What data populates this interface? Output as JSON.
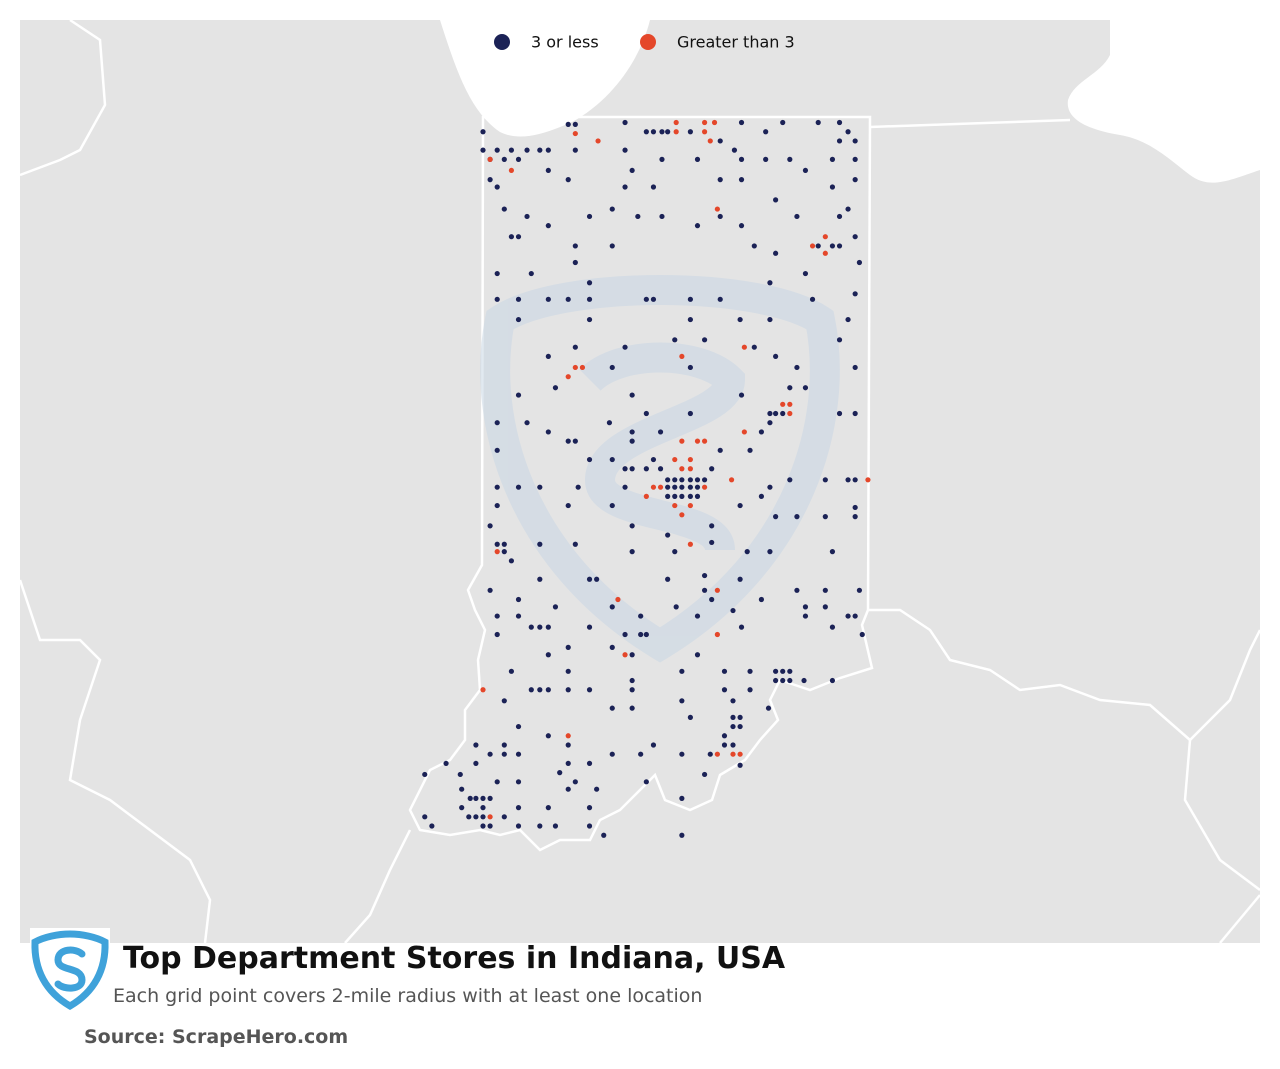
{
  "title": "Top Department Stores in Indiana, USA",
  "subtitle": "Each grid point covers 2-mile radius with at least one location",
  "source": "Source: ScrapeHero.com",
  "legend": [
    {
      "name": "3 or less",
      "color": "#1b2256"
    },
    {
      "name": "Greater than 3",
      "color": "#e4472a"
    }
  ],
  "series": [
    {
      "lon": [
        -87.53,
        -86.93,
        -86.88,
        -86.53,
        -86.38,
        -86.33,
        -86.27,
        -86.23,
        -86.07,
        -85.86,
        -85.71,
        -85.54,
        -85.42,
        -85.17,
        -85.02,
        -84.96,
        -84.91,
        -85.02,
        -87.53,
        -87.43,
        -87.33,
        -87.22,
        -87.13,
        -87.07,
        -87.48,
        -87.38,
        -87.28,
        -87.48,
        -87.43,
        -87.07,
        -86.93,
        -86.88,
        -86.53,
        -86.48,
        -86.27,
        -86.02,
        -85.76,
        -85.71,
        -85.54,
        -85.37,
        -85.07,
        -84.91,
        -85.26,
        -85.07,
        -84.91,
        -85.86,
        -85.71,
        -86.33,
        -86.53,
        -87.38,
        -87.22,
        -87.07,
        -87.33,
        -87.28,
        -86.78,
        -86.62,
        -86.44,
        -86.27,
        -86.02,
        -85.86,
        -85.71,
        -85.47,
        -85.32,
        -85.02,
        -84.96,
        -84.91,
        -85.07,
        -85.02,
        -85.17,
        -86.88,
        -86.62,
        -85.62,
        -85.47,
        -87.43,
        -87.19,
        -86.88,
        -85.26,
        -84.88,
        -86.78,
        -85.51,
        -87.43,
        -87.28,
        -87.07,
        -86.93,
        -86.78,
        -86.38,
        -86.33,
        -86.07,
        -85.86,
        -85.21,
        -84.91,
        -87.28,
        -86.78,
        -86.07,
        -85.72,
        -85.51,
        -84.96,
        -86.88,
        -87.07,
        -86.53,
        -86.18,
        -85.97,
        -85.62,
        -85.47,
        -85.02,
        -85.32,
        -84.91,
        -86.07,
        -86.62,
        -87.02,
        -87.28,
        -86.48,
        -85.71,
        -85.37,
        -85.26,
        -87.43,
        -87.22,
        -86.64,
        -86.38,
        -86.07,
        -85.51,
        -85.47,
        -85.42,
        -84.91,
        -85.02,
        -87.07,
        -86.93,
        -86.88,
        -86.48,
        -86.48,
        -86.28,
        -85.86,
        -85.65,
        -85.57,
        -85.51,
        -87.43,
        -86.78,
        -86.62,
        -86.53,
        -86.48,
        -86.38,
        -86.33,
        -86.28,
        -86.23,
        -86.18,
        -86.13,
        -86.07,
        -86.02,
        -85.97,
        -85.92,
        -86.18,
        -86.13,
        -86.07,
        -86.02,
        -86.23,
        -86.18,
        -86.13,
        -86.07,
        -86.02,
        -86.23,
        -86.53,
        -87.43,
        -87.28,
        -87.13,
        -86.86,
        -85.51,
        -85.37,
        -85.12,
        -84.96,
        -84.91,
        -87.43,
        -86.93,
        -86.62,
        -85.72,
        -85.57,
        -85.47,
        -85.32,
        -85.12,
        -84.91,
        -84.91,
        -87.48,
        -86.48,
        -86.23,
        -85.92,
        -87.43,
        -87.38,
        -87.38,
        -87.33,
        -87.13,
        -86.88,
        -86.48,
        -86.18,
        -85.92,
        -85.67,
        -85.51,
        -85.07,
        -87.48,
        -87.28,
        -87.13,
        -86.78,
        -86.73,
        -86.23,
        -85.97,
        -85.97,
        -85.92,
        -85.72,
        -85.57,
        -85.32,
        -85.12,
        -84.88,
        -87.43,
        -87.28,
        -87.02,
        -86.62,
        -86.42,
        -86.17,
        -86.02,
        -85.77,
        -85.26,
        -85.26,
        -85.12,
        -84.96,
        -84.91,
        -87.43,
        -87.19,
        -87.13,
        -87.07,
        -86.78,
        -86.53,
        -86.42,
        -86.38,
        -85.71,
        -85.07,
        -84.86,
        -87.07,
        -86.93,
        -86.62,
        -86.48,
        -86.02,
        -85.47,
        -85.42,
        -85.37,
        -85.47,
        -85.42,
        -85.37,
        -87.33,
        -86.93,
        -86.48,
        -86.13,
        -85.83,
        -85.65,
        -85.07,
        -85.27,
        -87.19,
        -87.13,
        -87.07,
        -86.93,
        -86.78,
        -86.48,
        -85.83,
        -85.65,
        -87.38,
        -86.13,
        -85.77,
        -86.62,
        -86.48,
        -85.77,
        -85.72,
        -85.52,
        -86.07,
        -87.28,
        -85.77,
        -85.72,
        -85.83,
        -86.93,
        -87.07,
        -87.28,
        -87.58,
        -87.48,
        -87.38,
        -86.42,
        -86.33,
        -85.77,
        -85.83,
        -87.38,
        -87.69,
        -87.58,
        -86.93,
        -86.78,
        -86.62,
        -86.13,
        -85.93,
        -85.72,
        -87.79,
        -87.43,
        -87.28,
        -86.88,
        -86.99,
        -86.38,
        -85.97,
        -87.94,
        -86.93,
        -86.73,
        -86.13,
        -87.68,
        -87.58,
        -87.53,
        -87.48,
        -87.62,
        -87.53,
        -87.68,
        -87.63,
        -87.58,
        -87.53,
        -87.38,
        -87.28,
        -87.07,
        -86.78,
        -87.94,
        -87.89,
        -87.53,
        -87.48,
        -87.28,
        -87.13,
        -86.78,
        -87.02,
        -86.68,
        -86.13
      ],
      "lat": [
        41.68,
        41.72,
        41.72,
        41.73,
        41.68,
        41.68,
        41.68,
        41.68,
        41.68,
        41.63,
        41.73,
        41.68,
        41.73,
        41.73,
        41.73,
        41.68,
        41.63,
        41.63,
        41.58,
        41.58,
        41.58,
        41.58,
        41.58,
        41.58,
        41.53,
        41.53,
        41.53,
        41.42,
        41.38,
        41.47,
        41.42,
        41.58,
        41.58,
        41.47,
        41.53,
        41.53,
        41.58,
        41.53,
        41.53,
        41.53,
        41.53,
        41.53,
        41.47,
        41.38,
        41.42,
        41.42,
        41.42,
        41.38,
        41.38,
        41.26,
        41.22,
        41.17,
        41.11,
        41.11,
        41.22,
        41.26,
        41.22,
        41.22,
        41.17,
        41.22,
        41.17,
        41.31,
        41.22,
        41.22,
        41.26,
        41.11,
        41.06,
        41.06,
        41.06,
        41.06,
        41.06,
        41.06,
        41.02,
        40.91,
        40.91,
        40.97,
        40.91,
        40.97,
        40.86,
        40.86,
        40.77,
        40.77,
        40.77,
        40.77,
        40.77,
        40.77,
        40.77,
        40.77,
        40.77,
        40.77,
        40.8,
        40.66,
        40.66,
        40.66,
        40.66,
        40.66,
        40.66,
        40.51,
        40.46,
        40.51,
        40.55,
        40.55,
        40.51,
        40.46,
        40.55,
        40.4,
        40.4,
        40.4,
        40.4,
        40.29,
        40.25,
        40.25,
        40.25,
        40.29,
        40.29,
        40.1,
        40.1,
        40.1,
        40.15,
        40.15,
        40.15,
        40.15,
        40.15,
        40.15,
        40.15,
        40.05,
        40.0,
        40.0,
        40.05,
        40.0,
        40.05,
        39.95,
        39.95,
        40.05,
        40.1,
        39.95,
        39.9,
        39.9,
        39.85,
        39.85,
        39.85,
        39.9,
        39.85,
        39.79,
        39.79,
        39.79,
        39.79,
        39.79,
        39.79,
        39.85,
        39.75,
        39.75,
        39.75,
        39.75,
        39.7,
        39.7,
        39.7,
        39.7,
        39.7,
        39.75,
        39.75,
        39.75,
        39.75,
        39.75,
        39.75,
        39.75,
        39.79,
        39.79,
        39.79,
        39.79,
        39.65,
        39.65,
        39.65,
        39.65,
        39.7,
        39.59,
        39.59,
        39.59,
        39.59,
        39.64,
        39.54,
        39.54,
        39.49,
        39.54,
        39.44,
        39.44,
        39.4,
        39.35,
        39.44,
        39.44,
        39.4,
        39.4,
        39.45,
        39.4,
        39.4,
        39.4,
        39.19,
        39.14,
        39.25,
        39.25,
        39.25,
        39.25,
        39.27,
        39.19,
        39.14,
        39.25,
        39.14,
        39.19,
        39.19,
        39.19,
        39.05,
        39.05,
        39.1,
        39.1,
        39.05,
        39.1,
        39.05,
        39.08,
        39.1,
        39.05,
        39.1,
        39.05,
        39.05,
        38.95,
        38.99,
        38.99,
        38.99,
        38.99,
        38.95,
        38.95,
        38.95,
        38.99,
        38.99,
        38.95,
        38.84,
        38.88,
        38.88,
        38.84,
        38.84,
        38.75,
        38.75,
        38.75,
        38.7,
        38.7,
        38.7,
        38.75,
        38.75,
        38.7,
        38.75,
        38.75,
        38.75,
        38.7,
        38.7,
        38.65,
        38.65,
        38.65,
        38.65,
        38.65,
        38.65,
        38.65,
        38.65,
        38.59,
        38.59,
        38.59,
        38.55,
        38.55,
        38.5,
        38.5,
        38.55,
        38.5,
        38.45,
        38.45,
        38.45,
        38.4,
        38.35,
        38.4,
        38.3,
        38.35,
        38.3,
        38.3,
        38.3,
        38.35,
        38.35,
        38.35,
        38.35,
        38.19,
        38.25,
        38.25,
        38.25,
        38.3,
        38.3,
        38.3,
        38.24,
        38.25,
        38.15,
        38.15,
        38.15,
        38.2,
        38.15,
        38.19,
        38.19,
        38.11,
        38.11,
        38.06,
        38.11,
        38.06,
        38.06,
        38.06,
        38.06,
        38.01,
        38.01,
        37.96,
        37.96,
        37.96,
        37.96,
        38.01,
        38.01,
        38.01,
        37.96,
        37.91,
        37.91,
        37.91,
        37.91,
        37.91,
        37.91,
        37.91,
        37.86,
        37.86,
        41.78
      ]
    },
    {
      "lon": [
        -87.48,
        -87.33,
        -86.88,
        -86.72,
        -86.17,
        -86.17,
        -85.97,
        -85.97,
        -85.9,
        -85.93,
        -85.88,
        -85.21,
        -85.12,
        -85.12,
        -86.88,
        -86.83,
        -86.93,
        -86.13,
        -85.69,
        -85.42,
        -85.37,
        -85.37,
        -85.69,
        -86.13,
        -86.02,
        -85.97,
        -86.18,
        -86.07,
        -86.13,
        -86.07,
        -86.33,
        -86.28,
        -85.97,
        -85.78,
        -86.38,
        -86.18,
        -86.13,
        -86.07,
        -86.07,
        -87.43,
        -86.58,
        -85.88,
        -86.53,
        -85.88,
        -87.53,
        -86.93,
        -85.88,
        -85.77,
        -85.72,
        -87.48,
        -84.82
      ],
      "lat": [
        41.53,
        41.47,
        41.67,
        41.63,
        41.73,
        41.68,
        41.73,
        41.68,
        41.73,
        41.63,
        41.26,
        41.06,
        41.11,
        41.02,
        40.4,
        40.4,
        40.35,
        40.46,
        40.51,
        40.2,
        40.2,
        40.15,
        40.05,
        40.0,
        40.0,
        40.0,
        39.9,
        39.9,
        39.85,
        39.85,
        39.75,
        39.75,
        39.75,
        39.79,
        39.7,
        39.65,
        39.6,
        39.65,
        39.44,
        39.4,
        39.14,
        39.19,
        38.84,
        38.95,
        38.65,
        38.4,
        38.3,
        38.3,
        38.3,
        37.96,
        39.79
      ]
    }
  ]
}
